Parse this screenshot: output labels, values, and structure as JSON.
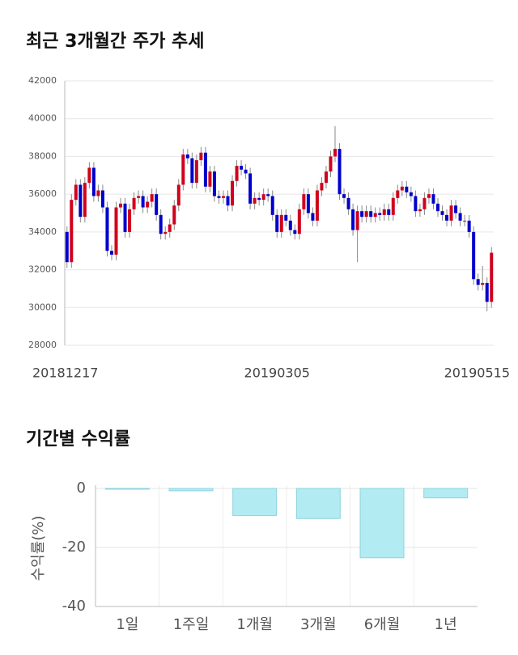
{
  "chart_data": [
    {
      "type": "candlestick",
      "title": "최근 3개월간 주가 추세",
      "categories": [
        "20181217",
        null,
        null,
        null,
        null,
        null,
        null,
        null,
        null,
        null,
        null,
        null,
        null,
        null,
        null,
        null,
        null,
        null,
        null,
        null,
        null,
        null,
        null,
        null,
        null,
        null,
        null,
        null,
        null,
        null,
        null,
        null,
        null,
        null,
        null,
        null,
        null,
        null,
        null,
        null,
        null,
        null,
        null,
        null,
        null,
        null,
        null,
        "20190305",
        null,
        null,
        null,
        null,
        null,
        null,
        null,
        null,
        null,
        null,
        null,
        null,
        null,
        null,
        null,
        null,
        null,
        null,
        null,
        null,
        null,
        null,
        null,
        null,
        null,
        null,
        null,
        null,
        null,
        null,
        null,
        null,
        null,
        null,
        null,
        null,
        null,
        null,
        null,
        null,
        null,
        null,
        null,
        null,
        null,
        null,
        null,
        "20190515"
      ],
      "open": [
        34000,
        32400,
        35700,
        36500,
        34800,
        36600,
        37400,
        35900,
        36200,
        35300,
        33000,
        32800,
        35300,
        35500,
        34000,
        35200,
        35800,
        35900,
        35300,
        35600,
        36000,
        34900,
        33900,
        34000,
        34400,
        35400,
        36500,
        38100,
        37900,
        36600,
        37800,
        38200,
        36400,
        37200,
        35900,
        35800,
        35900,
        35400,
        36700,
        37500,
        37300,
        37100,
        35500,
        35800,
        35700,
        36000,
        35900,
        34900,
        34000,
        34900,
        34600,
        34100,
        33900,
        35200,
        36000,
        35000,
        34600,
        36200,
        36600,
        37200,
        38000,
        38400,
        36000,
        35800,
        35200,
        34100,
        35100,
        34800,
        35100,
        34800,
        35000,
        34900,
        35200,
        34900,
        35800,
        36200,
        36400,
        36100,
        35900,
        35100,
        35200,
        35800,
        36000,
        35500,
        35100,
        34900,
        34600,
        35400,
        35000,
        34600,
        34600,
        34000,
        31500,
        31200,
        31300,
        30300
      ],
      "high": [
        34300,
        36000,
        36800,
        36800,
        36900,
        37700,
        37700,
        36500,
        36500,
        35600,
        33300,
        35600,
        35800,
        35800,
        35500,
        36100,
        36200,
        36200,
        35900,
        36300,
        36300,
        35200,
        34300,
        34700,
        35700,
        36800,
        38400,
        38400,
        38200,
        38100,
        38500,
        38500,
        37500,
        37500,
        36200,
        36200,
        36200,
        37000,
        37800,
        37800,
        37600,
        37400,
        36100,
        36100,
        36300,
        36300,
        36200,
        35200,
        35200,
        35200,
        34900,
        34400,
        35500,
        36300,
        36300,
        35300,
        36500,
        36900,
        37500,
        38300,
        39600,
        38700,
        36300,
        36100,
        35500,
        35400,
        35400,
        35400,
        35400,
        35300,
        35300,
        35500,
        35500,
        36100,
        36500,
        36700,
        36700,
        36400,
        36200,
        35500,
        36100,
        36300,
        36300,
        35800,
        35400,
        35200,
        35700,
        35700,
        35300,
        34900,
        34900,
        34300,
        31800,
        32200,
        31600,
        33200
      ],
      "low": [
        32100,
        32100,
        35400,
        34500,
        34500,
        36300,
        35600,
        35600,
        35000,
        32700,
        32500,
        32500,
        35000,
        33700,
        33700,
        34900,
        35500,
        35000,
        35000,
        35300,
        34600,
        33600,
        33600,
        33700,
        34100,
        35100,
        36200,
        37600,
        36300,
        36300,
        37500,
        36100,
        36100,
        35600,
        35500,
        35500,
        35100,
        35100,
        36400,
        37000,
        36800,
        35200,
        35200,
        35400,
        35400,
        35600,
        34600,
        33700,
        33700,
        34300,
        33800,
        33600,
        33600,
        34900,
        34700,
        34300,
        34300,
        35900,
        36300,
        36900,
        37700,
        35700,
        35500,
        34900,
        33800,
        32400,
        34500,
        34500,
        34500,
        34500,
        34600,
        34600,
        34600,
        34600,
        35500,
        35900,
        35800,
        35600,
        34800,
        34800,
        34900,
        35500,
        35200,
        34800,
        34600,
        34300,
        34300,
        34700,
        34300,
        34300,
        33700,
        31200,
        30900,
        30900,
        29800,
        30000
      ],
      "close": [
        32400,
        35700,
        36500,
        34800,
        36600,
        37400,
        35900,
        36200,
        35300,
        33000,
        32800,
        35300,
        35500,
        34000,
        35200,
        35800,
        35900,
        35300,
        35600,
        36000,
        34900,
        33900,
        34000,
        34400,
        35400,
        36500,
        38100,
        37900,
        36600,
        37800,
        38200,
        36400,
        37200,
        35900,
        35800,
        35900,
        35400,
        36700,
        37500,
        37300,
        37100,
        35500,
        35800,
        35700,
        36000,
        35900,
        34900,
        34000,
        34900,
        34600,
        34100,
        33900,
        35200,
        36000,
        35000,
        34600,
        36200,
        36600,
        37200,
        38000,
        38400,
        36000,
        35800,
        35200,
        34100,
        35100,
        34800,
        35100,
        34800,
        35000,
        34900,
        35200,
        34900,
        35800,
        36200,
        36400,
        36100,
        35900,
        35100,
        35200,
        35800,
        36000,
        35500,
        35100,
        34900,
        34600,
        35400,
        35000,
        34600,
        34600,
        34000,
        31500,
        31200,
        31300,
        30300,
        32900
      ],
      "up_color": "#d0021b",
      "down_color": "#0000cc",
      "ylim": [
        28000,
        42000
      ],
      "yticks": [
        28000,
        30000,
        32000,
        34000,
        36000,
        38000,
        40000,
        42000
      ],
      "grid": true
    },
    {
      "type": "bar",
      "title": "기간별 수익률",
      "y_label": "수익률(%)",
      "categories": [
        "1일",
        "1주일",
        "1개월",
        "3개월",
        "6개월",
        "1년"
      ],
      "values": [
        0,
        -0.8,
        -9.2,
        -10.2,
        -23.5,
        -3.2
      ],
      "color": "#b2ebf2",
      "ylim": [
        -40,
        0
      ],
      "yticks": [
        0,
        -20,
        -40
      ],
      "grid": true
    }
  ]
}
